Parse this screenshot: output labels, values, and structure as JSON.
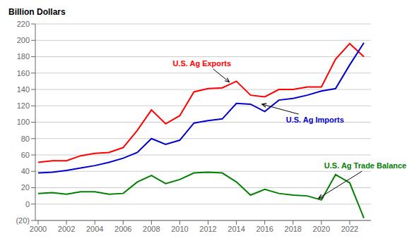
{
  "chart_data": {
    "type": "line",
    "y_label": "Billion Dollars",
    "x": [
      2000,
      2001,
      2002,
      2003,
      2004,
      2005,
      2006,
      2007,
      2008,
      2009,
      2010,
      2011,
      2012,
      2013,
      2014,
      2015,
      2016,
      2017,
      2018,
      2019,
      2020,
      2021,
      2022,
      2023
    ],
    "series": [
      {
        "color": "#ff0000",
        "values": [
          51,
          53,
          53,
          59,
          62,
          63,
          69,
          90,
          115,
          98,
          108,
          137,
          141,
          142,
          150,
          133,
          131,
          140,
          140,
          143,
          143,
          177,
          196,
          180
        ]
      },
      {
        "color": "#0000cc",
        "values": [
          38,
          39,
          41,
          44,
          47,
          51,
          56,
          63,
          80,
          73,
          78,
          99,
          102,
          104,
          123,
          122,
          113,
          127,
          129,
          133,
          138,
          141,
          170,
          197
        ]
      },
      {
        "color": "#008000",
        "values": [
          13,
          14,
          12,
          15,
          15,
          12,
          13,
          27,
          35,
          25,
          30,
          38,
          39,
          38,
          27,
          11,
          18,
          13,
          11,
          10,
          5,
          36,
          26,
          -17
        ]
      }
    ],
    "xlim": [
      1999.8,
      2023.5
    ],
    "xticks": [
      2000,
      2002,
      2004,
      2006,
      2008,
      2010,
      2012,
      2014,
      2016,
      2018,
      2020,
      2022
    ],
    "ylim": [
      -20,
      220
    ],
    "yticks": [
      {
        "value": -20,
        "label": "(20)"
      },
      0,
      20,
      40,
      60,
      80,
      100,
      120,
      140,
      160,
      180,
      200,
      220
    ],
    "grid": true,
    "annotations": [
      {
        "text": "U.S. Ag Exports",
        "color": "#ff0000",
        "x": 2013.5,
        "y": 149,
        "text_x": 2009.5,
        "text_y": 172
      },
      {
        "text": "U.S. Ag Imports",
        "color": "#0000cc",
        "x": 2015.8,
        "y": 122,
        "text_x": 2017.5,
        "text_y": 103
      },
      {
        "text": "U.S. Ag Trade Balance",
        "color": "#008000",
        "x": 2019.8,
        "y": 7,
        "text_x": 2020.2,
        "text_y": 47
      }
    ]
  }
}
